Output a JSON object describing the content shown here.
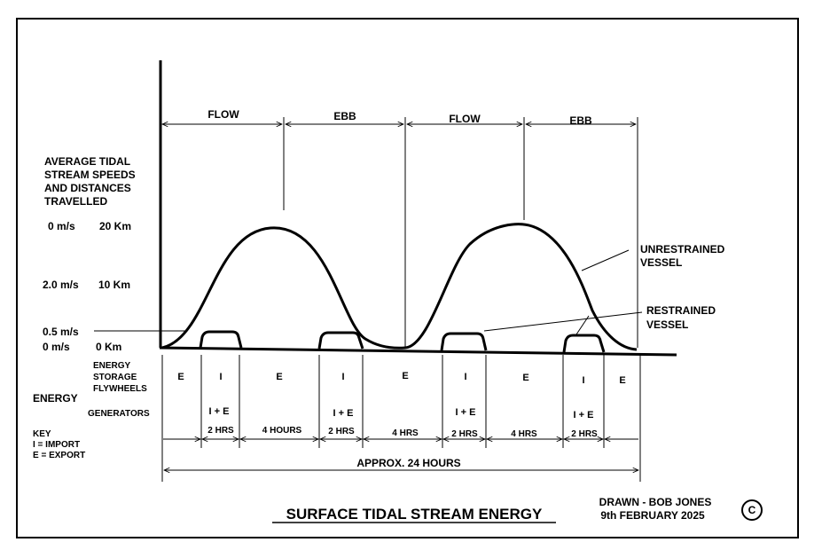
{
  "phases": [
    "FLOW",
    "EBB",
    "FLOW",
    "EBB"
  ],
  "axis_title": [
    "AVERAGE TIDAL",
    "STREAM SPEEDS",
    "AND DISTANCES",
    "TRAVELLED"
  ],
  "speed_levels": [
    {
      "speed": "0 m/s",
      "distance": "20 Km"
    },
    {
      "speed": "2.0 m/s",
      "distance": "10 Km"
    },
    {
      "speed": "0.5 m/s",
      "distance": ""
    },
    {
      "speed": "0 m/s",
      "distance": "0 Km"
    }
  ],
  "curve_labels": {
    "unrestrained": [
      "UNRESTRAINED",
      "VESSEL"
    ],
    "restrained": [
      "RESTRAINED",
      "VESSEL"
    ]
  },
  "energy": {
    "label": "ENERGY",
    "storage_label": [
      "ENERGY",
      "STORAGE",
      "FLYWHEELS"
    ],
    "generators_label": "GENERATORS",
    "storage_row": [
      "E",
      "I",
      "E",
      "I",
      "E",
      "I",
      "E",
      "I",
      "E"
    ],
    "generator_row": [
      "I + E",
      "I + E",
      "I + E",
      "I + E"
    ]
  },
  "durations": [
    "2 HRS",
    "4 HOURS",
    "2 HRS",
    "4 HRS",
    "2 HRS",
    "4 HRS",
    "2 HRS"
  ],
  "total_duration": "APPROX. 24 HOURS",
  "key": [
    "KEY",
    "I = IMPORT",
    "E = EXPORT"
  ],
  "credit": [
    "DRAWN - BOB JONES",
    "9th FEBRUARY 2025"
  ],
  "copyright_symbol": "C",
  "title": "SURFACE TIDAL STREAM ENERGY"
}
